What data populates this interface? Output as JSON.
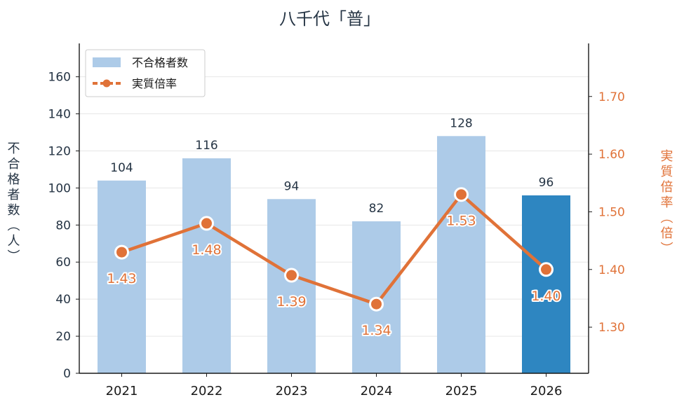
{
  "chart_data": {
    "type": "bar",
    "title": "八千代「普」",
    "categories": [
      "2021",
      "2022",
      "2023",
      "2024",
      "2025",
      "2026"
    ],
    "series": [
      {
        "name": "不合格者数",
        "type": "bar",
        "axis": "left",
        "values": [
          104,
          116,
          94,
          82,
          128,
          96
        ],
        "color": "#adcbe8",
        "highlight_color": "#2e86c1",
        "highlight_index": 5
      },
      {
        "name": "実質倍率",
        "type": "line",
        "axis": "right",
        "values": [
          1.43,
          1.48,
          1.39,
          1.34,
          1.53,
          1.4
        ],
        "labels": [
          "1.43",
          "1.48",
          "1.39",
          "1.34",
          "1.53",
          "1.40"
        ],
        "color": "#e07238"
      }
    ],
    "ylabel_left": "不合格者数（人）",
    "ylabel_right": "実質倍率（倍）",
    "ylim_left": [
      0,
      178
    ],
    "yticks_left": [
      "0",
      "20",
      "40",
      "60",
      "80",
      "100",
      "120",
      "140",
      "160"
    ],
    "ylim_right": [
      1.22,
      1.792
    ],
    "yticks_right": [
      "1.30",
      "1.40",
      "1.50",
      "1.60",
      "1.70"
    ],
    "grid": true,
    "legend_position": "top-left"
  }
}
